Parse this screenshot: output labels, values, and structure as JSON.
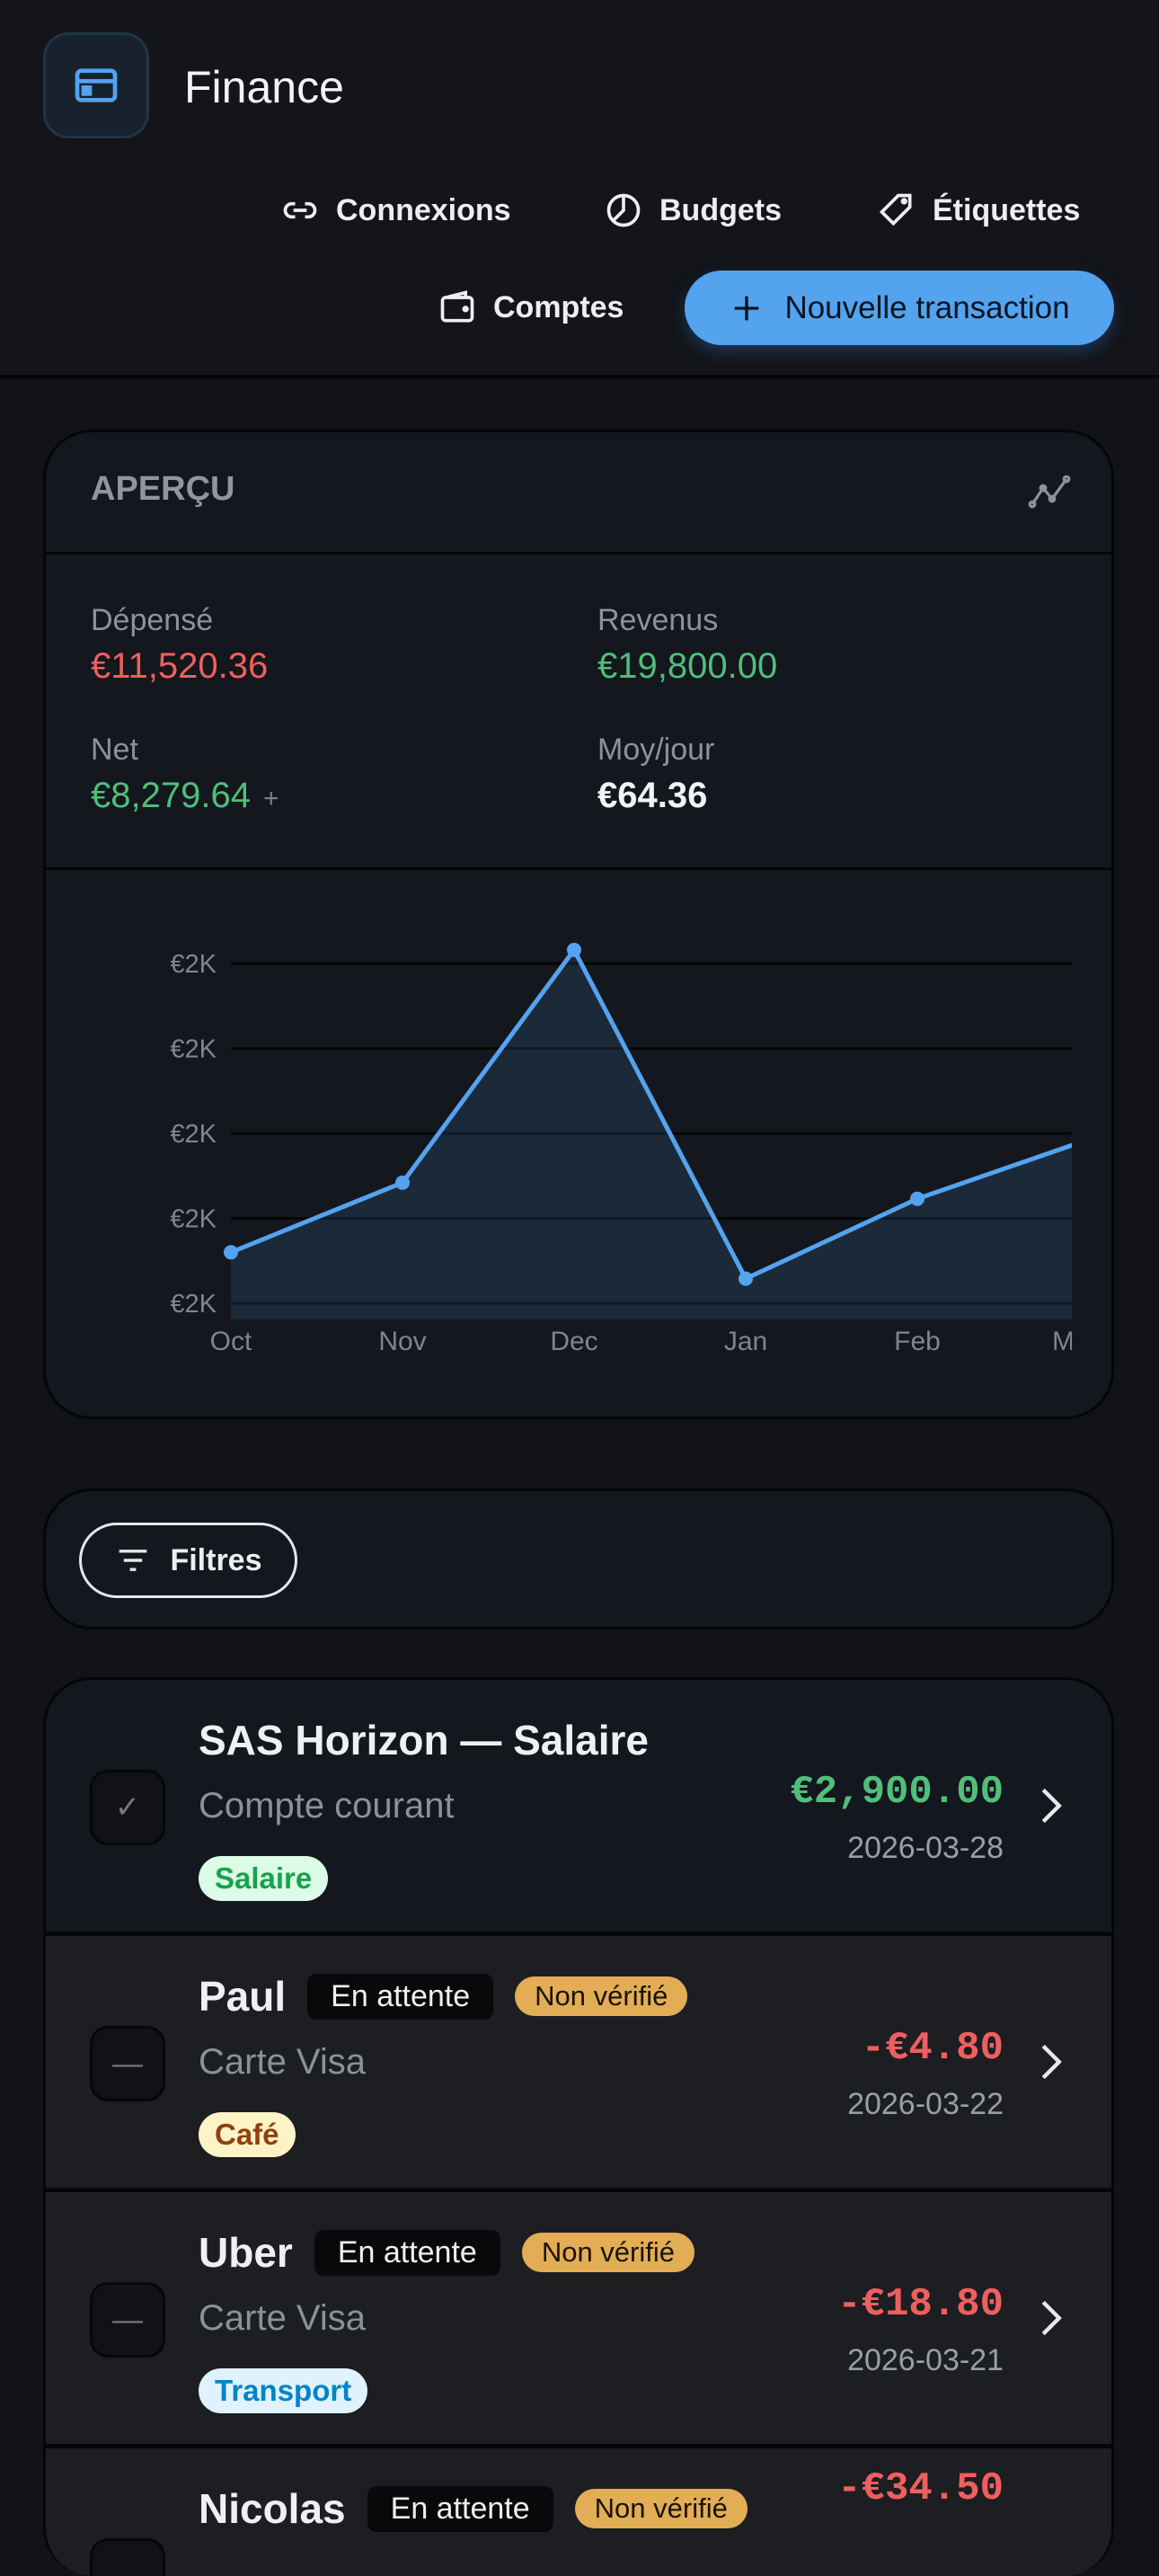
{
  "header": {
    "title": "Finance",
    "logo_icon": "credit-card-icon",
    "nav": [
      {
        "label": "Connexions",
        "icon": "link-icon"
      },
      {
        "label": "Budgets",
        "icon": "pie-chart-icon"
      },
      {
        "label": "Étiquettes",
        "icon": "tag-icon"
      },
      {
        "label": "Comptes",
        "icon": "wallet-icon"
      }
    ],
    "new_transaction": "Nouvelle transaction"
  },
  "overview": {
    "title": "APERÇU",
    "spent": {
      "label": "Dépensé",
      "value": "€11,520.36"
    },
    "income": {
      "label": "Revenus",
      "value": "€19,800.00"
    },
    "net": {
      "label": "Net",
      "value": "€8,279.64",
      "suffix": "+"
    },
    "per_day": {
      "label": "Moy/jour",
      "value": "€64.36"
    }
  },
  "chart_data": {
    "type": "area",
    "categories": [
      "Oct",
      "Nov",
      "Dec",
      "Jan",
      "Feb",
      "M"
    ],
    "values": [
      1660,
      1742,
      2016,
      1629,
      1723,
      1793
    ],
    "yticks": [
      2000,
      1900,
      1800,
      1700,
      1600
    ],
    "ytick_labels": [
      "€2K",
      "€2K",
      "€2K",
      "€2K",
      "€2K"
    ],
    "ylim": [
      1581,
      2000
    ],
    "grid": true,
    "color": "#53a3ef"
  },
  "filters": {
    "label": "Filtres"
  },
  "transactions": [
    {
      "name": "SAS Horizon — Salaire",
      "account": "Compte courant",
      "tag": "Salaire",
      "amount": "€2,900.00",
      "date": "2026-03-28",
      "checked": true,
      "pending": "",
      "unverified": ""
    },
    {
      "name": "Paul",
      "account": "Carte Visa",
      "tag": "Café",
      "amount": "-€4.80",
      "date": "2026-03-22",
      "checked": false,
      "pending": "En attente",
      "unverified": "Non vérifié"
    },
    {
      "name": "Uber",
      "account": "Carte Visa",
      "tag": "Transport",
      "amount": "-€18.80",
      "date": "2026-03-21",
      "checked": false,
      "pending": "En attente",
      "unverified": "Non vérifié"
    },
    {
      "name": "Nicolas",
      "account": "",
      "tag": "",
      "amount": "-€34.50",
      "date": "",
      "checked": false,
      "pending": "En attente",
      "unverified": "Non vérifié"
    }
  ],
  "colors": {
    "accent": "#53a3ef",
    "expense": "#ef5f5f",
    "income": "#4fbf7a",
    "unverified": "#e2ad55"
  }
}
